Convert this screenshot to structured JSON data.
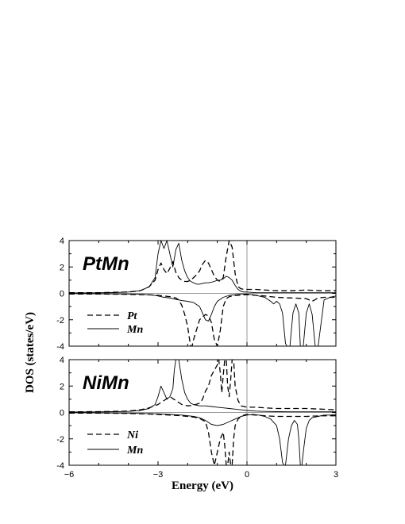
{
  "chart_data": [
    {
      "type": "line",
      "title": "PtMn",
      "xlim": [
        -6,
        3
      ],
      "ylim": [
        -4,
        4
      ],
      "xticks": [
        -6,
        -3,
        0,
        3
      ],
      "yticks": [
        -4,
        -2,
        0,
        2,
        4
      ],
      "ylabel": "DOS (states/eV)",
      "xlabel": "Energy (eV)",
      "series": [
        {
          "name": "Pt",
          "style": "dashed",
          "x": [
            -6,
            -5,
            -4.5,
            -4,
            -3.6,
            -3.3,
            -3.1,
            -3.0,
            -2.9,
            -2.8,
            -2.7,
            -2.6,
            -2.5,
            -2.4,
            -2.3,
            -2.2,
            -2.1,
            -2.0,
            -1.9,
            -1.8,
            -1.7,
            -1.6,
            -1.5,
            -1.4,
            -1.3,
            -1.2,
            -1.1,
            -1.0,
            -0.9,
            -0.8,
            -0.7,
            -0.6,
            -0.5,
            -0.4,
            -0.3,
            -0.2,
            -0.1,
            0,
            0.3,
            0.6,
            1,
            1.5,
            2,
            2.5,
            3
          ],
          "y": [
            0.05,
            0.05,
            0.08,
            0.1,
            0.2,
            0.5,
            1.0,
            1.8,
            2.3,
            1.8,
            1.5,
            1.9,
            2.4,
            1.6,
            1.2,
            1.0,
            0.9,
            0.9,
            1.0,
            1.2,
            1.4,
            1.7,
            2.2,
            2.5,
            2.3,
            1.8,
            1.3,
            1.0,
            0.9,
            1.2,
            2.8,
            4.0,
            3.5,
            1.5,
            0.5,
            0.35,
            0.3,
            0.3,
            0.3,
            0.25,
            0.2,
            0.2,
            0.25,
            0.2,
            0.2
          ]
        },
        {
          "name": "Mn",
          "style": "solid",
          "x": [
            -6,
            -5,
            -4.5,
            -4,
            -3.6,
            -3.3,
            -3.1,
            -3.0,
            -2.9,
            -2.8,
            -2.7,
            -2.6,
            -2.5,
            -2.4,
            -2.3,
            -2.2,
            -2.1,
            -2.0,
            -1.9,
            -1.8,
            -1.7,
            -1.6,
            -1.5,
            -1.4,
            -1.3,
            -1.2,
            -1.1,
            -1.0,
            -0.9,
            -0.8,
            -0.7,
            -0.6,
            -0.5,
            -0.4,
            -0.3,
            -0.2,
            -0.1,
            0,
            0.3,
            0.6,
            1,
            1.5,
            2,
            2.5,
            3
          ],
          "y": [
            0.03,
            0.04,
            0.06,
            0.1,
            0.2,
            0.5,
            1.2,
            3.0,
            4.0,
            3.4,
            4.0,
            3.0,
            2.0,
            3.3,
            3.8,
            2.5,
            1.7,
            1.2,
            0.9,
            0.8,
            0.7,
            0.7,
            0.75,
            0.8,
            0.8,
            0.85,
            0.9,
            1.0,
            1.0,
            1.1,
            1.3,
            1.2,
            1.0,
            0.6,
            0.3,
            0.15,
            0.1,
            0.1,
            0.05,
            0.05,
            0.05,
            0.05,
            0.05,
            0.05,
            0.05
          ]
        },
        {
          "name": "Pt",
          "style": "dashed",
          "x": [
            -6,
            -5,
            -4.5,
            -4,
            -3.5,
            -3.2,
            -3.0,
            -2.8,
            -2.6,
            -2.4,
            -2.3,
            -2.2,
            -2.1,
            -2.0,
            -1.95,
            -1.9,
            -1.85,
            -1.8,
            -1.6,
            -1.4,
            -1.3,
            -1.2,
            -1.1,
            -1.0,
            -0.9,
            -0.8,
            -0.7,
            -0.6,
            -0.5,
            -0.4,
            -0.3,
            -0.2,
            -0.1,
            0,
            0.3,
            0.6,
            1,
            1.5,
            2,
            2.2,
            2.4,
            2.6,
            2.8,
            3
          ],
          "y": [
            -0.05,
            -0.05,
            -0.06,
            -0.08,
            -0.1,
            -0.12,
            -0.15,
            -0.2,
            -0.25,
            -0.35,
            -0.5,
            -0.9,
            -1.6,
            -2.5,
            -3.3,
            -4.0,
            -4.0,
            -3.5,
            -2.0,
            -1.6,
            -1.7,
            -2.2,
            -3.5,
            -4.0,
            -2.8,
            -1.0,
            -0.4,
            -0.25,
            -0.2,
            -0.15,
            -0.15,
            -0.15,
            -0.1,
            -0.1,
            -0.15,
            -0.2,
            -0.3,
            -0.35,
            -0.4,
            -0.6,
            -0.35,
            -0.3,
            -0.3,
            -0.3
          ]
        },
        {
          "name": "Mn",
          "style": "solid",
          "x": [
            -6,
            -5,
            -4.5,
            -4,
            -3.5,
            -3.2,
            -3.0,
            -2.8,
            -2.6,
            -2.4,
            -2.2,
            -2.0,
            -1.8,
            -1.6,
            -1.5,
            -1.4,
            -1.3,
            -1.2,
            -1.1,
            -1.0,
            -0.8,
            -0.6,
            -0.4,
            -0.2,
            0,
            0.2,
            0.4,
            0.6,
            0.8,
            0.9,
            1.0,
            1.1,
            1.2,
            1.3,
            1.35,
            1.45,
            1.55,
            1.65,
            1.75,
            1.8,
            1.9,
            2.0,
            2.1,
            2.2,
            2.3,
            2.4,
            2.6,
            2.8,
            3
          ],
          "y": [
            -0.02,
            -0.03,
            -0.04,
            -0.05,
            -0.08,
            -0.12,
            -0.2,
            -0.3,
            -0.35,
            -0.45,
            -0.55,
            -0.6,
            -0.7,
            -1.0,
            -1.5,
            -2.0,
            -2.1,
            -1.6,
            -1.0,
            -0.6,
            -0.3,
            -0.15,
            -0.1,
            -0.05,
            -0.05,
            -0.1,
            -0.2,
            -0.3,
            -0.6,
            -0.8,
            -0.6,
            -0.8,
            -1.5,
            -3.8,
            -4.0,
            -4.0,
            -1.5,
            -0.8,
            -1.5,
            -4.0,
            -4.0,
            -1.5,
            -0.8,
            -1.6,
            -4.0,
            -4.0,
            -0.5,
            -0.3,
            -0.2
          ]
        }
      ],
      "legend": [
        {
          "label": "Pt",
          "style": "dashed"
        },
        {
          "label": "Mn",
          "style": "solid"
        }
      ]
    },
    {
      "type": "line",
      "title": "NiMn",
      "xlim": [
        -6,
        3
      ],
      "ylim": [
        -4,
        4
      ],
      "xticks": [
        -6,
        -3,
        0,
        3
      ],
      "yticks": [
        -4,
        -2,
        0,
        2,
        4
      ],
      "series": [
        {
          "name": "Ni",
          "style": "dashed",
          "x": [
            -6,
            -5,
            -4.5,
            -4,
            -3.6,
            -3.3,
            -3.0,
            -2.8,
            -2.6,
            -2.4,
            -2.2,
            -2.0,
            -1.8,
            -1.6,
            -1.5,
            -1.4,
            -1.3,
            -1.2,
            -1.1,
            -1.0,
            -0.95,
            -0.9,
            -0.85,
            -0.8,
            -0.75,
            -0.7,
            -0.65,
            -0.6,
            -0.55,
            -0.5,
            -0.45,
            -0.4,
            -0.3,
            -0.2,
            -0.1,
            0,
            0.3,
            0.6,
            1,
            1.5,
            2,
            2.5,
            3
          ],
          "y": [
            0.05,
            0.06,
            0.08,
            0.1,
            0.2,
            0.35,
            0.6,
            0.9,
            1.2,
            0.9,
            0.6,
            0.5,
            0.55,
            0.7,
            1.0,
            1.6,
            2.0,
            2.8,
            3.2,
            3.6,
            4.0,
            3.0,
            1.5,
            2.8,
            4.0,
            4.0,
            2.0,
            1.2,
            2.5,
            4.0,
            4.0,
            2.0,
            0.9,
            0.5,
            0.45,
            0.4,
            0.4,
            0.35,
            0.3,
            0.3,
            0.3,
            0.25,
            0.2
          ]
        },
        {
          "name": "Mn",
          "style": "solid",
          "x": [
            -6,
            -5,
            -4.5,
            -4,
            -3.6,
            -3.3,
            -3.1,
            -3.0,
            -2.9,
            -2.8,
            -2.7,
            -2.6,
            -2.5,
            -2.45,
            -2.4,
            -2.35,
            -2.3,
            -2.2,
            -2.1,
            -2.0,
            -1.9,
            -1.8,
            -1.6,
            -1.4,
            -1.2,
            -1.0,
            -0.8,
            -0.6,
            -0.4,
            -0.2,
            0,
            0.3,
            0.6,
            1,
            1.5,
            2,
            2.5,
            3
          ],
          "y": [
            0.03,
            0.04,
            0.06,
            0.08,
            0.15,
            0.3,
            0.6,
            1.2,
            2.0,
            1.5,
            1.0,
            1.2,
            1.8,
            3.2,
            4.0,
            4.0,
            4.0,
            2.5,
            1.5,
            1.0,
            0.7,
            0.6,
            0.5,
            0.5,
            0.45,
            0.4,
            0.35,
            0.3,
            0.25,
            0.2,
            0.15,
            0.1,
            0.08,
            0.06,
            0.05,
            0.05,
            0.05,
            0.05
          ]
        },
        {
          "name": "Ni",
          "style": "dashed",
          "x": [
            -6,
            -5,
            -4.5,
            -4,
            -3.5,
            -3.0,
            -2.6,
            -2.2,
            -1.8,
            -1.6,
            -1.4,
            -1.3,
            -1.2,
            -1.1,
            -1.0,
            -0.9,
            -0.8,
            -0.75,
            -0.7,
            -0.65,
            -0.6,
            -0.55,
            -0.5,
            -0.45,
            -0.4,
            -0.3,
            -0.2,
            -0.1,
            0,
            0.3,
            0.6,
            1,
            1.5,
            2,
            2.5,
            3
          ],
          "y": [
            -0.05,
            -0.05,
            -0.06,
            -0.08,
            -0.1,
            -0.15,
            -0.2,
            -0.25,
            -0.35,
            -0.45,
            -0.7,
            -1.5,
            -3.0,
            -4.0,
            -3.0,
            -2.0,
            -1.5,
            -2.5,
            -4.0,
            -4.0,
            -3.0,
            -4.0,
            -4.0,
            -2.0,
            -1.0,
            -0.5,
            -0.3,
            -0.2,
            -0.15,
            -0.2,
            -0.25,
            -0.3,
            -0.3,
            -0.3,
            -0.25,
            -0.25
          ]
        },
        {
          "name": "Mn",
          "style": "solid",
          "x": [
            -6,
            -5,
            -4.5,
            -4,
            -3.5,
            -3.0,
            -2.6,
            -2.2,
            -1.8,
            -1.6,
            -1.4,
            -1.2,
            -1.0,
            -0.8,
            -0.6,
            -0.4,
            -0.2,
            0,
            0.2,
            0.4,
            0.6,
            0.8,
            1.0,
            1.1,
            1.2,
            1.25,
            1.3,
            1.4,
            1.5,
            1.6,
            1.7,
            1.75,
            1.8,
            1.85,
            1.9,
            2.0,
            2.1,
            2.2,
            2.4,
            2.6,
            2.8,
            3
          ],
          "y": [
            -0.02,
            -0.03,
            -0.04,
            -0.05,
            -0.08,
            -0.1,
            -0.15,
            -0.2,
            -0.3,
            -0.4,
            -0.6,
            -0.9,
            -1.0,
            -0.9,
            -0.7,
            -0.5,
            -0.3,
            -0.2,
            -0.15,
            -0.2,
            -0.3,
            -0.5,
            -1.0,
            -2.0,
            -3.8,
            -4.0,
            -4.0,
            -2.0,
            -1.0,
            -0.6,
            -0.9,
            -2.0,
            -4.0,
            -4.0,
            -3.0,
            -1.2,
            -0.6,
            -0.4,
            -0.3,
            -0.2,
            -0.2,
            -0.15
          ]
        }
      ],
      "legend": [
        {
          "label": "Ni",
          "style": "dashed"
        },
        {
          "label": "Mn",
          "style": "solid"
        }
      ]
    }
  ]
}
